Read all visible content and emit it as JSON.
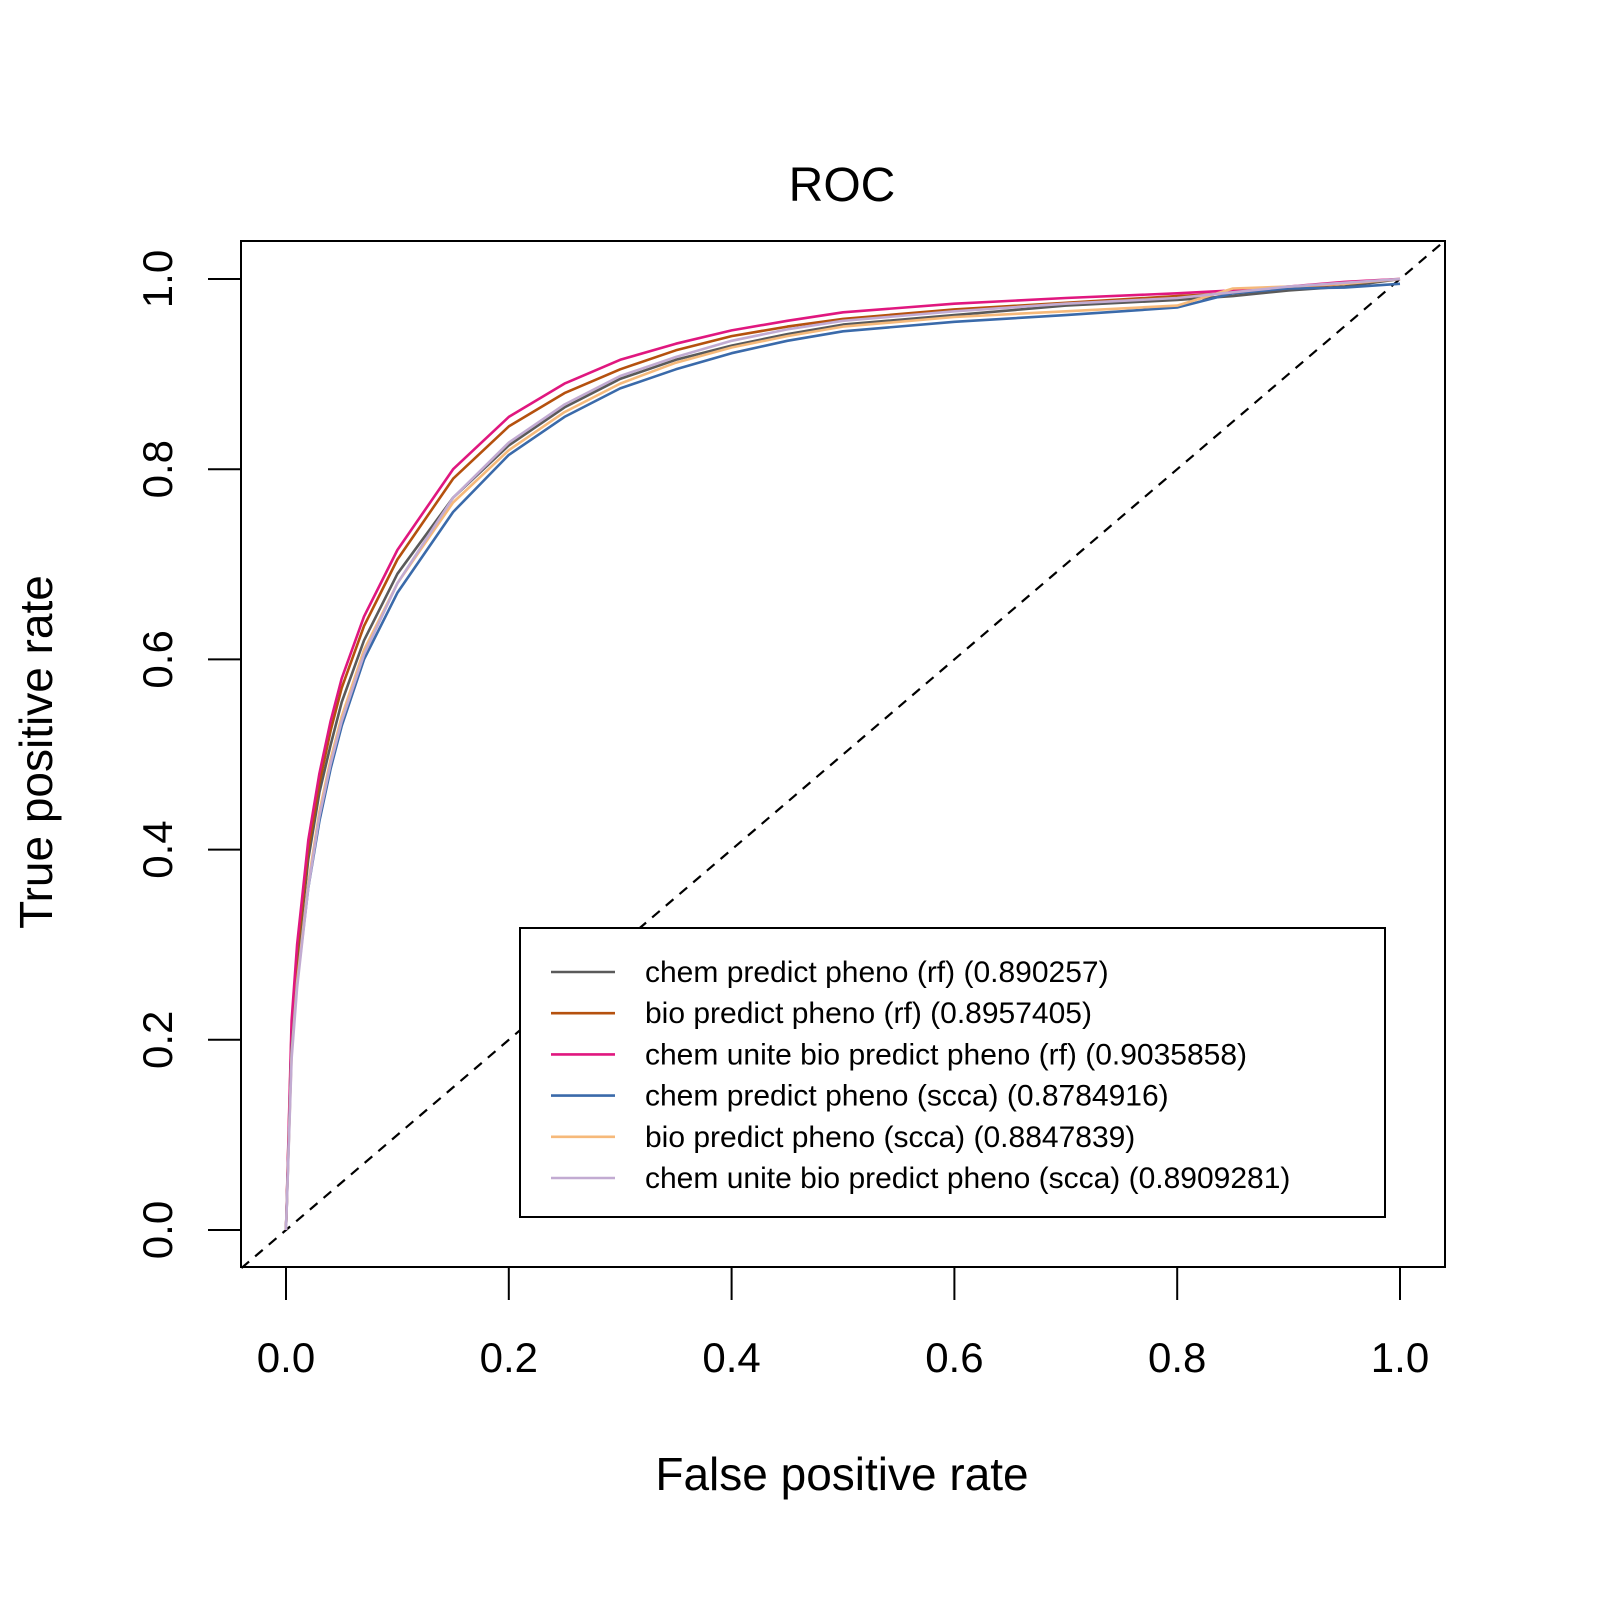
{
  "chart_data": {
    "type": "line",
    "title": "ROC",
    "xlabel": "False positive rate",
    "ylabel": "True positive rate",
    "xlim": [
      -0.04,
      1.04
    ],
    "ylim": [
      -0.04,
      1.04
    ],
    "x_ticks": [
      "0.0",
      "0.2",
      "0.4",
      "0.6",
      "0.8",
      "1.0"
    ],
    "y_ticks": [
      "0.0",
      "0.2",
      "0.4",
      "0.6",
      "0.8",
      "1.0"
    ],
    "grid": false,
    "legend_position": "bottom-right",
    "reference_line": {
      "style": "dashed",
      "color": "#000000",
      "from": [
        0,
        0
      ],
      "to": [
        1,
        1
      ]
    },
    "series": [
      {
        "name": "chem predict pheno (rf) (0.890257)",
        "color": "#5a5a5a",
        "x": [
          0,
          0.005,
          0.01,
          0.02,
          0.03,
          0.04,
          0.05,
          0.07,
          0.1,
          0.15,
          0.2,
          0.25,
          0.3,
          0.35,
          0.4,
          0.45,
          0.5,
          0.6,
          0.7,
          0.8,
          0.85,
          0.9,
          0.95,
          1
        ],
        "y": [
          0,
          0.2,
          0.28,
          0.39,
          0.46,
          0.51,
          0.555,
          0.62,
          0.69,
          0.77,
          0.825,
          0.865,
          0.895,
          0.915,
          0.93,
          0.942,
          0.952,
          0.962,
          0.972,
          0.978,
          0.982,
          0.988,
          0.992,
          1
        ]
      },
      {
        "name": "bio predict pheno (rf) (0.8957405)",
        "color": "#b5510e",
        "x": [
          0,
          0.005,
          0.01,
          0.02,
          0.03,
          0.04,
          0.05,
          0.07,
          0.1,
          0.15,
          0.2,
          0.25,
          0.3,
          0.35,
          0.4,
          0.45,
          0.5,
          0.6,
          0.7,
          0.8,
          0.85,
          0.9,
          0.95,
          1
        ],
        "y": [
          0,
          0.21,
          0.29,
          0.4,
          0.47,
          0.525,
          0.57,
          0.635,
          0.705,
          0.79,
          0.845,
          0.88,
          0.905,
          0.925,
          0.94,
          0.95,
          0.958,
          0.968,
          0.975,
          0.982,
          0.985,
          0.99,
          0.995,
          1
        ]
      },
      {
        "name": "chem unite bio predict pheno (rf) (0.9035858)",
        "color": "#e0177f",
        "x": [
          0,
          0.005,
          0.01,
          0.02,
          0.03,
          0.04,
          0.05,
          0.07,
          0.1,
          0.15,
          0.2,
          0.25,
          0.3,
          0.35,
          0.4,
          0.45,
          0.5,
          0.6,
          0.7,
          0.8,
          0.85,
          0.9,
          0.95,
          1
        ],
        "y": [
          0,
          0.22,
          0.3,
          0.41,
          0.48,
          0.535,
          0.58,
          0.645,
          0.715,
          0.8,
          0.855,
          0.89,
          0.915,
          0.932,
          0.946,
          0.956,
          0.965,
          0.974,
          0.98,
          0.985,
          0.988,
          0.992,
          0.997,
          1
        ]
      },
      {
        "name": "chem predict pheno (scca) (0.8784916)",
        "color": "#3a6aaa",
        "x": [
          0,
          0.005,
          0.01,
          0.02,
          0.03,
          0.04,
          0.05,
          0.07,
          0.1,
          0.15,
          0.2,
          0.25,
          0.3,
          0.35,
          0.4,
          0.45,
          0.5,
          0.6,
          0.7,
          0.8,
          0.85,
          0.9,
          0.95,
          1
        ],
        "y": [
          0,
          0.19,
          0.26,
          0.36,
          0.43,
          0.485,
          0.53,
          0.6,
          0.67,
          0.755,
          0.815,
          0.855,
          0.885,
          0.905,
          0.922,
          0.935,
          0.945,
          0.955,
          0.962,
          0.97,
          0.985,
          0.99,
          0.991,
          0.995
        ]
      },
      {
        "name": "bio predict pheno (scca) (0.8847839)",
        "color": "#f6b97a",
        "x": [
          0,
          0.005,
          0.01,
          0.02,
          0.03,
          0.04,
          0.05,
          0.07,
          0.1,
          0.15,
          0.2,
          0.25,
          0.3,
          0.35,
          0.4,
          0.45,
          0.5,
          0.6,
          0.7,
          0.8,
          0.85,
          0.9,
          0.95,
          1
        ],
        "y": [
          0,
          0.185,
          0.26,
          0.365,
          0.44,
          0.495,
          0.54,
          0.61,
          0.68,
          0.765,
          0.82,
          0.86,
          0.89,
          0.912,
          0.928,
          0.94,
          0.95,
          0.96,
          0.966,
          0.972,
          0.99,
          0.992,
          0.995,
          1
        ]
      },
      {
        "name": "chem unite bio predict pheno (scca) (0.8909281)",
        "color": "#c2abd2",
        "x": [
          0,
          0.005,
          0.01,
          0.02,
          0.03,
          0.04,
          0.05,
          0.07,
          0.1,
          0.15,
          0.2,
          0.25,
          0.3,
          0.35,
          0.4,
          0.45,
          0.5,
          0.6,
          0.7,
          0.8,
          0.85,
          0.9,
          0.95,
          1
        ],
        "y": [
          0,
          0.18,
          0.255,
          0.36,
          0.435,
          0.49,
          0.535,
          0.605,
          0.68,
          0.77,
          0.828,
          0.868,
          0.898,
          0.918,
          0.935,
          0.947,
          0.956,
          0.966,
          0.974,
          0.98,
          0.986,
          0.992,
          0.996,
          1
        ]
      }
    ]
  }
}
